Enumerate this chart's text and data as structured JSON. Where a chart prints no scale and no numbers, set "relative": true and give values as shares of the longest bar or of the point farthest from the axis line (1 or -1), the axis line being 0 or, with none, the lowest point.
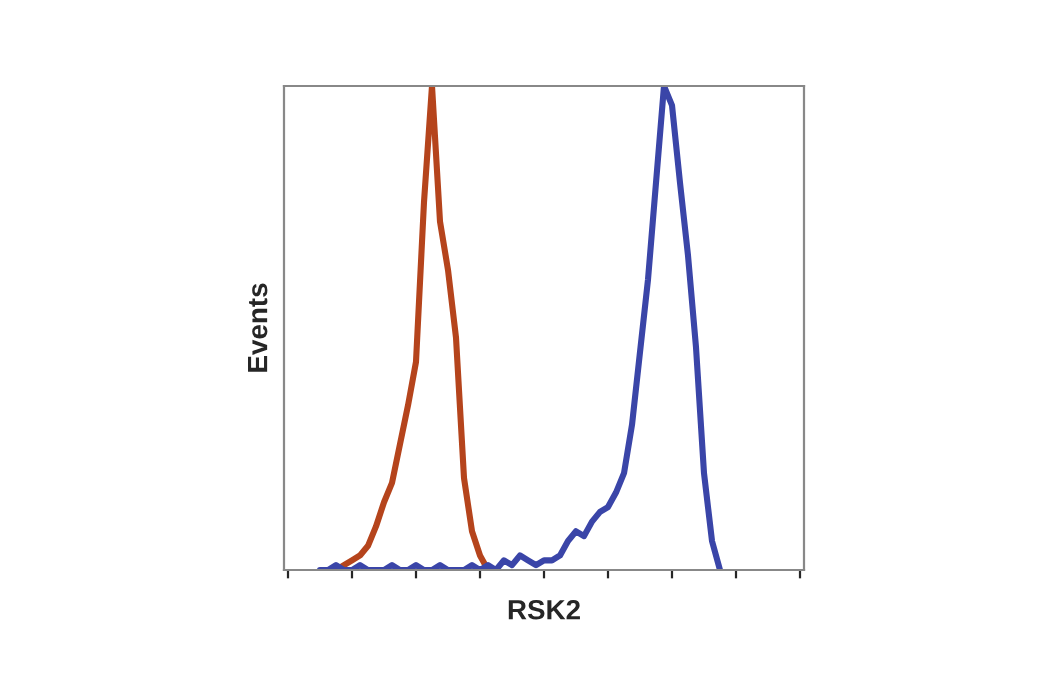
{
  "chart_data": {
    "type": "line",
    "relative": true,
    "xlabel": "RSK2",
    "ylabel": "Events",
    "grid": false,
    "marker": "none",
    "line_style": "solid",
    "categories": [
      null,
      null,
      null,
      null,
      null,
      null,
      null,
      null,
      null,
      null,
      null,
      null,
      null,
      null,
      null,
      null,
      null,
      null,
      null,
      null,
      null,
      null,
      null,
      null,
      null,
      null,
      null,
      null,
      null,
      null,
      null,
      null,
      null,
      null,
      null,
      null,
      null,
      null,
      null,
      null,
      null,
      null,
      null,
      null,
      null,
      null,
      null,
      null,
      null,
      null,
      null,
      null,
      null,
      null,
      null,
      null,
      null,
      null,
      null,
      null,
      null,
      null,
      null,
      null,
      null
    ],
    "series": [
      {
        "color": "#b5441c",
        "values": [
          null,
          null,
          null,
          null,
          null,
          null,
          0,
          0.01,
          0.02,
          0.03,
          0.05,
          0.09,
          0.14,
          0.18,
          0.26,
          0.34,
          0.43,
          0.76,
          1.0,
          0.72,
          0.62,
          0.48,
          0.19,
          0.08,
          0.03,
          0,
          null,
          null,
          null,
          null,
          null,
          null,
          null,
          null,
          null,
          null,
          null,
          null,
          null,
          null,
          null,
          null,
          null,
          null,
          null,
          null,
          null,
          null,
          null,
          null,
          null,
          null,
          null,
          null,
          null,
          null,
          null,
          null,
          null,
          null,
          null,
          null,
          null,
          null,
          null
        ]
      },
      {
        "color": "#3a45a8",
        "values": [
          null,
          null,
          null,
          null,
          0,
          0,
          0.01,
          0,
          0,
          0.01,
          0,
          0,
          0,
          0.01,
          0,
          0,
          0.01,
          0,
          0,
          0.01,
          0,
          0,
          0,
          0.01,
          0,
          0.01,
          0,
          0.02,
          0.01,
          0.03,
          0.02,
          0.01,
          0.02,
          0.02,
          0.03,
          0.06,
          0.08,
          0.07,
          0.1,
          0.12,
          0.13,
          0.16,
          0.2,
          0.3,
          0.45,
          0.6,
          0.8,
          1.0,
          0.96,
          0.8,
          0.65,
          0.46,
          0.2,
          0.06,
          0,
          null,
          null,
          null,
          null,
          null,
          null,
          null,
          null,
          null,
          null
        ]
      }
    ]
  }
}
